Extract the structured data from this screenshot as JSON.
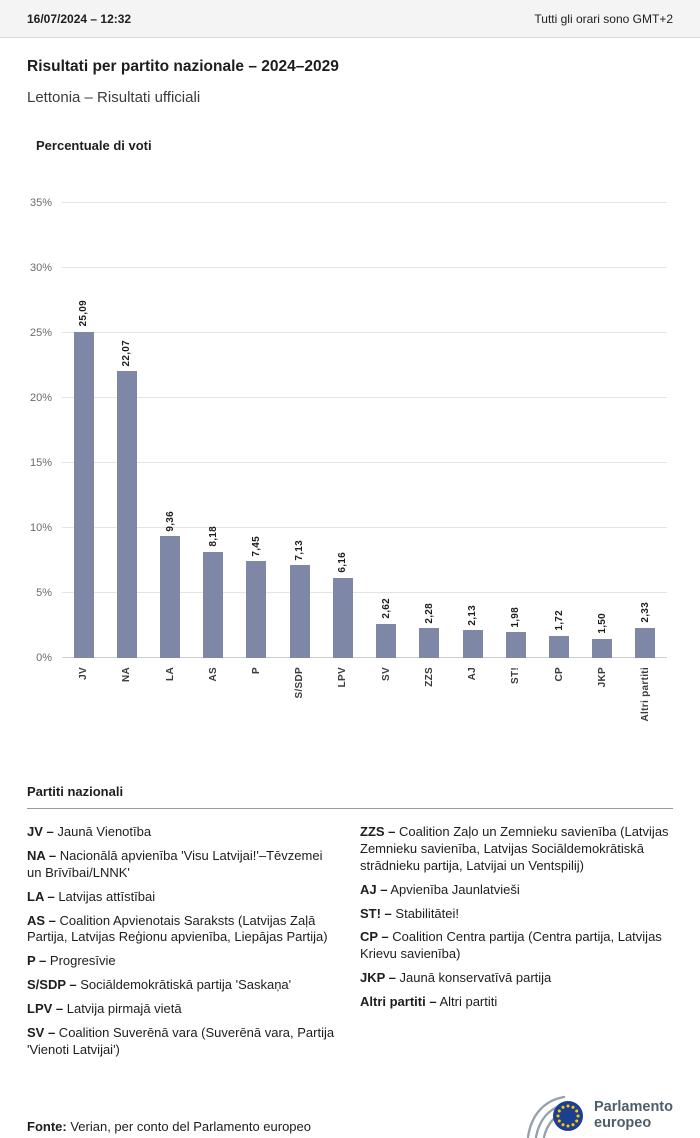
{
  "header": {
    "datetime": "16/07/2024 – 12:32",
    "timezone_note": "Tutti gli orari sono GMT+2"
  },
  "title": "Risultati per partito nazionale – 2024–2029",
  "subtitle": "Lettonia – Risultati ufficiali",
  "chart_data": {
    "type": "bar",
    "title": "Percentuale di voti",
    "categories": [
      "JV",
      "NA",
      "LA",
      "AS",
      "P",
      "S/SDP",
      "LPV",
      "SV",
      "ZZS",
      "AJ",
      "ST!",
      "CP",
      "JKP",
      "Altri partiti"
    ],
    "values": [
      25.09,
      22.07,
      9.36,
      8.18,
      7.45,
      7.13,
      6.16,
      2.62,
      2.28,
      2.13,
      1.98,
      1.72,
      1.5,
      2.33
    ],
    "value_labels": [
      "25,09",
      "22,07",
      "9,36",
      "8,18",
      "7,45",
      "7,13",
      "6,16",
      "2,62",
      "2,28",
      "2,13",
      "1,98",
      "1,72",
      "1,50",
      "2,33"
    ],
    "xlabel": "",
    "ylabel": "",
    "ylim": [
      0,
      35
    ],
    "ytick_labels": [
      "0%",
      "5%",
      "10%",
      "15%",
      "20%",
      "25%",
      "30%",
      "35%"
    ],
    "grid": true,
    "legend_position": "none",
    "bar_color": "#7e87a6"
  },
  "legend": {
    "heading": "Partiti nazionali",
    "columns": [
      [
        {
          "abbr": "JV –",
          "text": "Jaunā Vienotība"
        },
        {
          "abbr": "NA –",
          "text": "Nacionālā apvienība 'Visu Latvijai!'–Tēvzemei un Brīvībai/LNNK'"
        },
        {
          "abbr": "LA –",
          "text": "Latvijas attīstībai"
        },
        {
          "abbr": "AS –",
          "text": "Coalition Apvienotais Saraksts (Latvijas Zaļā Partija, Latvijas Reģionu apvienība, Liepājas Partija)"
        },
        {
          "abbr": "P –",
          "text": "Progresīvie"
        },
        {
          "abbr": "S/SDP –",
          "text": "Sociāldemokrātiskā partija 'Saskaņa'"
        },
        {
          "abbr": "LPV –",
          "text": "Latvija pirmajā vietā"
        },
        {
          "abbr": "SV –",
          "text": "Coalition Suverēnā vara (Suverēnā vara, Partija 'Vienoti Latvijai')"
        }
      ],
      [
        {
          "abbr": "ZZS –",
          "text": "Coalition Zaļo un Zemnieku savienība (Latvijas Zemnieku savienība, Latvijas Sociāldemokrātiskā strādnieku partija, Latvijai un Ventspilij)"
        },
        {
          "abbr": "AJ –",
          "text": "Apvienība Jaunlatvieši"
        },
        {
          "abbr": "ST! –",
          "text": "Stabilitātei!"
        },
        {
          "abbr": "CP –",
          "text": "Coalition Centra partija (Centra partija, Latvijas Krievu savienība)"
        },
        {
          "abbr": "JKP –",
          "text": "Jaunā konservatīvā partija"
        },
        {
          "abbr": "Altri partiti –",
          "text": "Altri partiti"
        }
      ]
    ]
  },
  "footer": {
    "source_label": "Fonte:",
    "source_rest": " Verian, per conto del Parlamento europeo",
    "logo_lines": [
      "Parlamento",
      "europeo"
    ]
  }
}
